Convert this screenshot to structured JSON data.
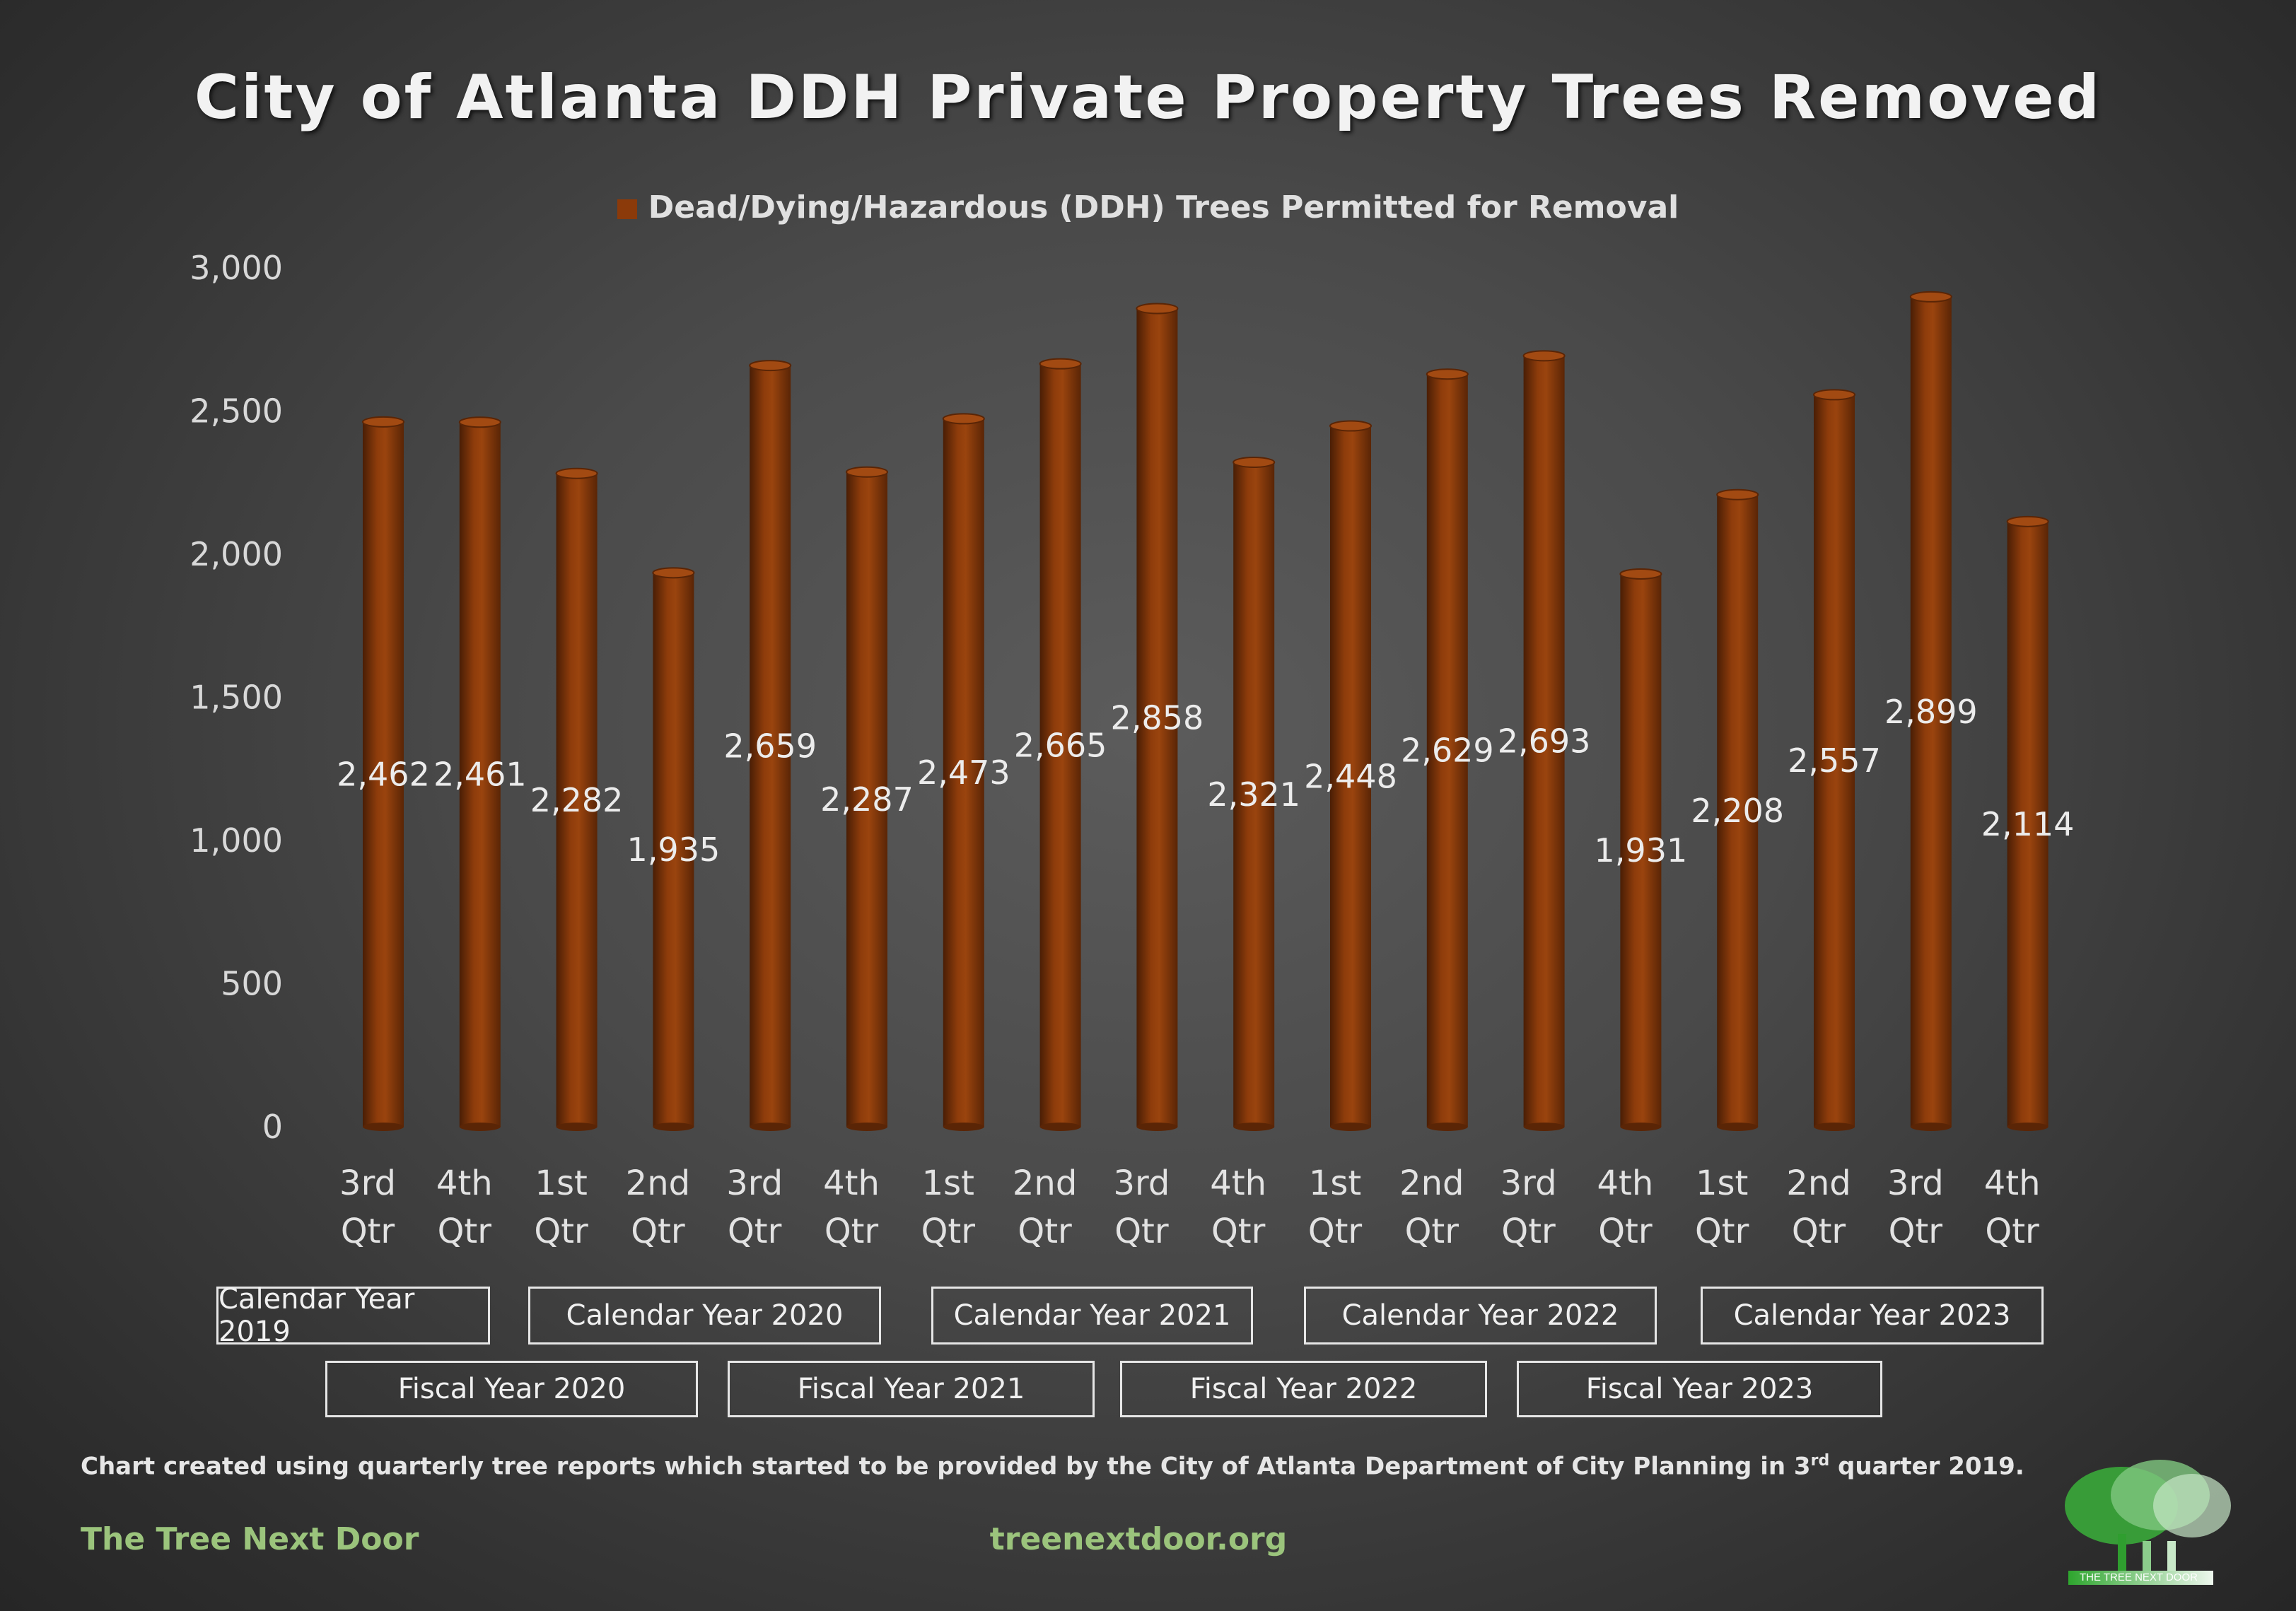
{
  "chart_data": {
    "type": "bar",
    "title": "City of Atlanta DDH Private Property Trees Removed",
    "series": [
      {
        "name": "Dead/Dying/Hazardous (DDH) Trees Permitted for Removal",
        "color": "#8b3a0a",
        "values": [
          2462,
          2461,
          2282,
          1935,
          2659,
          2287,
          2473,
          2665,
          2858,
          2321,
          2448,
          2629,
          2693,
          1931,
          2208,
          2557,
          2899,
          2114
        ]
      }
    ],
    "categories": [
      [
        "3rd",
        "Qtr"
      ],
      [
        "4th",
        "Qtr"
      ],
      [
        "1st",
        "Qtr"
      ],
      [
        "2nd",
        "Qtr"
      ],
      [
        "3rd",
        "Qtr"
      ],
      [
        "4th",
        "Qtr"
      ],
      [
        "1st",
        "Qtr"
      ],
      [
        "2nd",
        "Qtr"
      ],
      [
        "3rd",
        "Qtr"
      ],
      [
        "4th",
        "Qtr"
      ],
      [
        "1st",
        "Qtr"
      ],
      [
        "2nd",
        "Qtr"
      ],
      [
        "3rd",
        "Qtr"
      ],
      [
        "4th",
        "Qtr"
      ],
      [
        "1st",
        "Qtr"
      ],
      [
        "2nd",
        "Qtr"
      ],
      [
        "3rd",
        "Qtr"
      ],
      [
        "4th",
        "Qtr"
      ]
    ],
    "data_labels": [
      "2,462",
      "2,461",
      "2,282",
      "1,935",
      "2,659",
      "2,287",
      "2,473",
      "2,665",
      "2,858",
      "2,321",
      "2,448",
      "2,629",
      "2,693",
      "1,931",
      "2,208",
      "2,557",
      "2,899",
      "2,114"
    ],
    "ylim": [
      0,
      3000
    ],
    "yticks": [
      0,
      500,
      1000,
      1500,
      2000,
      2500,
      3000
    ],
    "ytick_labels": [
      "0",
      "500",
      "1,000",
      "1,500",
      "2,000",
      "2,500",
      "3,000"
    ],
    "legend_position": "top",
    "grid": false,
    "xlabel": "",
    "ylabel": ""
  },
  "calendar_years": [
    "Calendar Year 2019",
    "Calendar Year 2020",
    "Calendar Year 2021",
    "Calendar Year 2022",
    "Calendar Year 2023"
  ],
  "fiscal_years": [
    "Fiscal Year 2020",
    "Fiscal Year 2021",
    "Fiscal Year 2022",
    "Fiscal Year 2023"
  ],
  "footnote": {
    "before": "Chart created using quarterly tree reports which started to be provided by the City of Atlanta Department of City Planning in 3",
    "sup": "rd",
    "after": " quarter 2019."
  },
  "brand": "The Tree Next Door",
  "website": "treenextdoor.org",
  "logo_text": "THE TREE NEXT DOOR"
}
